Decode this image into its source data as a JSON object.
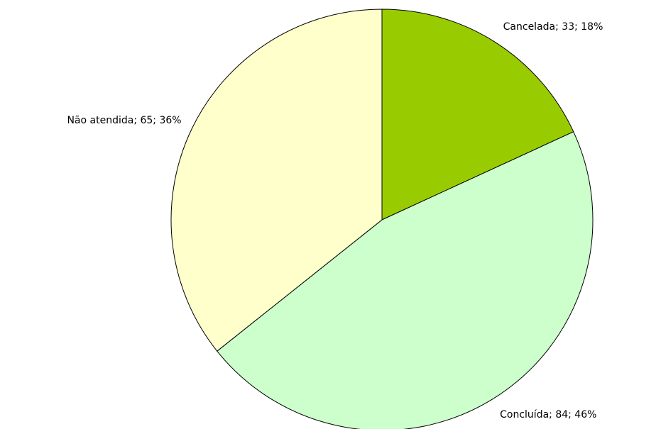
{
  "chart_data": {
    "type": "pie",
    "categories": [
      "Cancelada",
      "Concluída",
      "Não atendida"
    ],
    "values": [
      33,
      84,
      65
    ],
    "value_labels": [
      "Cancelada; 33; 18%",
      "Concluída; 84; 46%",
      "Não atendida; 65; 36%"
    ],
    "colors": [
      "#99cc00",
      "#ccffcc",
      "#ffffcc"
    ]
  }
}
